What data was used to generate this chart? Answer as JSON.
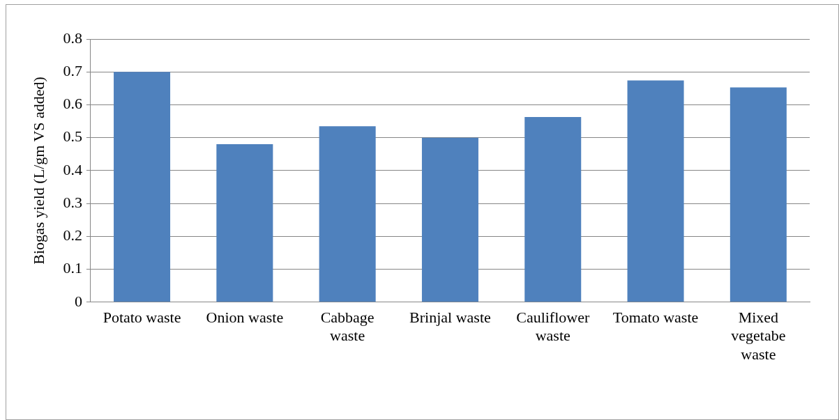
{
  "chart_data": {
    "type": "bar",
    "ylabel": "Biogas yield (L/gm VS added)",
    "categories": [
      "Potato waste",
      "Onion waste",
      "Cabbage waste",
      "Brinjal waste",
      "Cauliflower waste",
      "Tomato waste",
      "Mixed vegetabe waste"
    ],
    "values": [
      0.7,
      0.48,
      0.535,
      0.5,
      0.563,
      0.674,
      0.653
    ],
    "color": "#4f81bd",
    "ylim": [
      0,
      0.8
    ],
    "yticks": [
      0,
      0.1,
      0.2,
      0.3,
      0.4,
      0.5,
      0.6,
      0.7,
      0.8
    ],
    "grid": "y",
    "legend": false
  }
}
